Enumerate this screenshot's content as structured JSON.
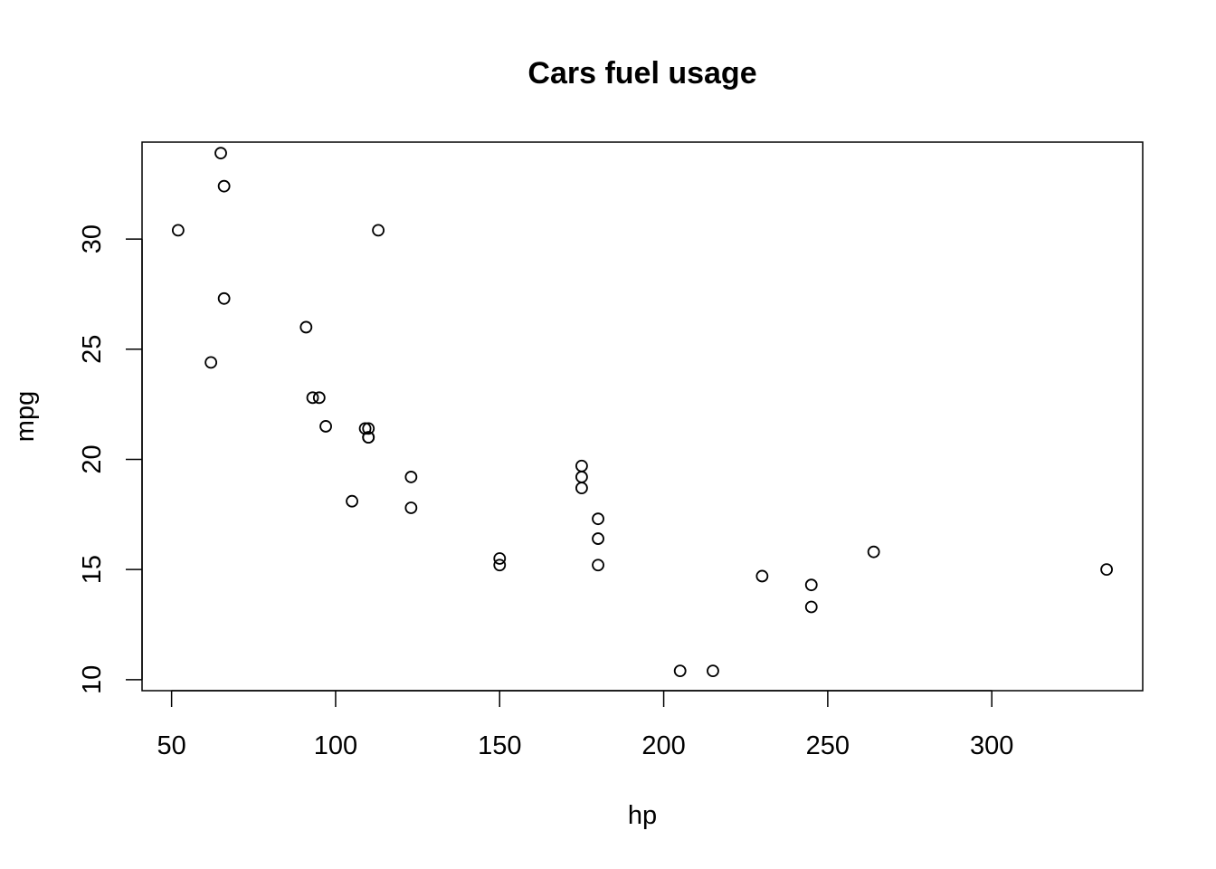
{
  "chart_data": {
    "type": "scatter",
    "title": "Cars fuel usage",
    "xlabel": "hp",
    "ylabel": "mpg",
    "xlim": [
      41,
      346
    ],
    "ylim": [
      9.5,
      34.4
    ],
    "xticks": [
      50,
      100,
      150,
      200,
      250,
      300
    ],
    "yticks": [
      10,
      15,
      20,
      25,
      30
    ],
    "grid": false,
    "legend": "none",
    "points": [
      {
        "x": 110,
        "y": 21.0
      },
      {
        "x": 110,
        "y": 21.0
      },
      {
        "x": 93,
        "y": 22.8
      },
      {
        "x": 110,
        "y": 21.4
      },
      {
        "x": 175,
        "y": 18.7
      },
      {
        "x": 105,
        "y": 18.1
      },
      {
        "x": 245,
        "y": 14.3
      },
      {
        "x": 62,
        "y": 24.4
      },
      {
        "x": 95,
        "y": 22.8
      },
      {
        "x": 123,
        "y": 19.2
      },
      {
        "x": 123,
        "y": 17.8
      },
      {
        "x": 180,
        "y": 16.4
      },
      {
        "x": 180,
        "y": 17.3
      },
      {
        "x": 180,
        "y": 15.2
      },
      {
        "x": 205,
        "y": 10.4
      },
      {
        "x": 215,
        "y": 10.4
      },
      {
        "x": 230,
        "y": 14.7
      },
      {
        "x": 66,
        "y": 32.4
      },
      {
        "x": 52,
        "y": 30.4
      },
      {
        "x": 65,
        "y": 33.9
      },
      {
        "x": 97,
        "y": 21.5
      },
      {
        "x": 150,
        "y": 15.5
      },
      {
        "x": 150,
        "y": 15.2
      },
      {
        "x": 245,
        "y": 13.3
      },
      {
        "x": 175,
        "y": 19.2
      },
      {
        "x": 66,
        "y": 27.3
      },
      {
        "x": 91,
        "y": 26.0
      },
      {
        "x": 113,
        "y": 30.4
      },
      {
        "x": 264,
        "y": 15.8
      },
      {
        "x": 175,
        "y": 19.7
      },
      {
        "x": 335,
        "y": 15.0
      },
      {
        "x": 109,
        "y": 21.4
      }
    ]
  }
}
